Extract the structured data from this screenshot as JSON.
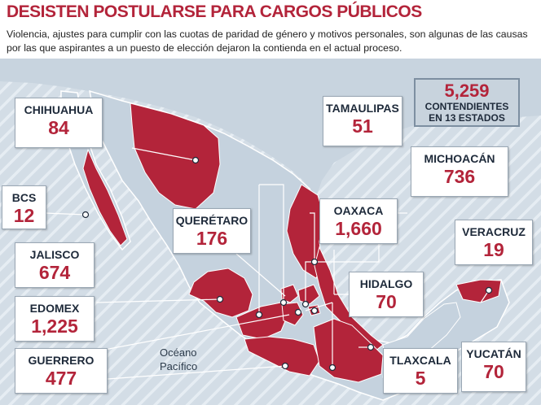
{
  "title": "DESISTEN POSTULARSE PARA CARGOS PÚBLICOS",
  "subtitle": "Violencia, ajustes para cumplir con las cuotas de paridad de género y motivos personales, son algunas de las causas por las que aspirantes a un puesto de elección dejaron la contienda en el actual proceso.",
  "total": {
    "value": "5,259",
    "label_line1": "CONTENDIENTES",
    "label_line2": "EN 13 ESTADOS"
  },
  "ocean_label": {
    "line1": "Océano",
    "line2": "Pacífico"
  },
  "states": [
    {
      "id": "chihuahua",
      "name": "CHIHUAHUA",
      "value": "84"
    },
    {
      "id": "bcs",
      "name": "BCS",
      "value": "12"
    },
    {
      "id": "jalisco",
      "name": "JALISCO",
      "value": "674"
    },
    {
      "id": "edomex",
      "name": "EDOMEX",
      "value": "1,225"
    },
    {
      "id": "guerrero",
      "name": "GUERRERO",
      "value": "477"
    },
    {
      "id": "queretaro",
      "name": "QUERÉTARO",
      "value": "176"
    },
    {
      "id": "tamaulipas",
      "name": "TAMAULIPAS",
      "value": "51"
    },
    {
      "id": "michoacan",
      "name": "MICHOACÁN",
      "value": "736"
    },
    {
      "id": "oaxaca",
      "name": "OAXACA",
      "value": "1,660"
    },
    {
      "id": "veracruz",
      "name": "VERACRUZ",
      "value": "19"
    },
    {
      "id": "hidalgo",
      "name": "HIDALGO",
      "value": "70"
    },
    {
      "id": "tlaxcala",
      "name": "TLAXCALA",
      "value": "5"
    },
    {
      "id": "yucatan",
      "name": "YUCATÁN",
      "value": "70"
    }
  ],
  "colors": {
    "highlight": "#b3243a",
    "land": "#c5d2de",
    "water": "#ffffff",
    "title": "#b3243a",
    "text": "#1e2a3a"
  }
}
